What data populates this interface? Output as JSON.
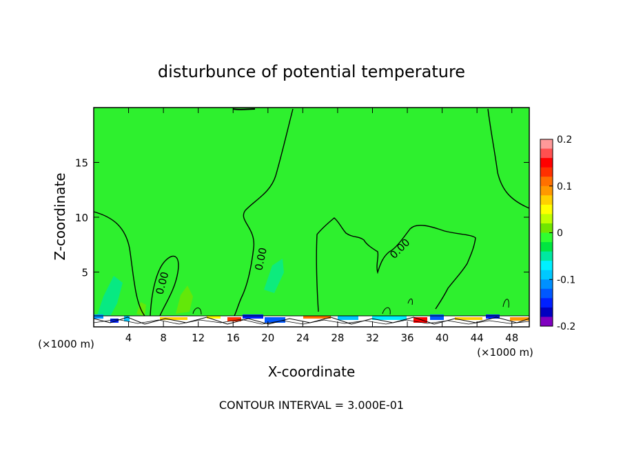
{
  "chart_data": {
    "type": "heatmap",
    "title": "disturbunce of potential temperature",
    "xlabel": "X-coordinate",
    "ylabel": "Z-coordinate",
    "x_unit_left": "(×1000 m)",
    "x_unit_right": "(×1000 m)",
    "footer": "CONTOUR INTERVAL = 3.000E-01",
    "xlim": [
      0,
      50
    ],
    "ylim": [
      0,
      20
    ],
    "x_ticks": [
      "4",
      "8",
      "12",
      "16",
      "20",
      "24",
      "28",
      "32",
      "36",
      "40",
      "44",
      "48"
    ],
    "x_tick_values": [
      4,
      8,
      12,
      16,
      20,
      24,
      28,
      32,
      36,
      40,
      44,
      48
    ],
    "y_ticks": [
      "5",
      "10",
      "15"
    ],
    "y_tick_values": [
      5,
      10,
      15
    ],
    "contour_labels": [
      {
        "text": "0.00",
        "x": 7.5,
        "y": 4.2
      },
      {
        "text": "0.00",
        "x": 19.0,
        "y": 6.3
      },
      {
        "text": "0.00",
        "x": 35.0,
        "y": 7.5
      }
    ],
    "colorbar": {
      "min": -0.2,
      "max": 0.2,
      "tick_labels": [
        "0.2",
        "0.1",
        "0",
        "-0.1",
        "-0.2"
      ],
      "tick_values": [
        0.2,
        0.1,
        0.0,
        -0.1,
        -0.2
      ],
      "colors": [
        "#ff9999",
        "#ff5050",
        "#ff0000",
        "#ff3000",
        "#ff7000",
        "#ff9800",
        "#ffd000",
        "#ffff00",
        "#c0ff00",
        "#70e600",
        "#30ff30",
        "#00e640",
        "#00e8a0",
        "#00f0ff",
        "#00c8ff",
        "#0090ff",
        "#0058ff",
        "#0020ff",
        "#0000c0",
        "#8000c0"
      ]
    },
    "background_value": 0.0
  }
}
